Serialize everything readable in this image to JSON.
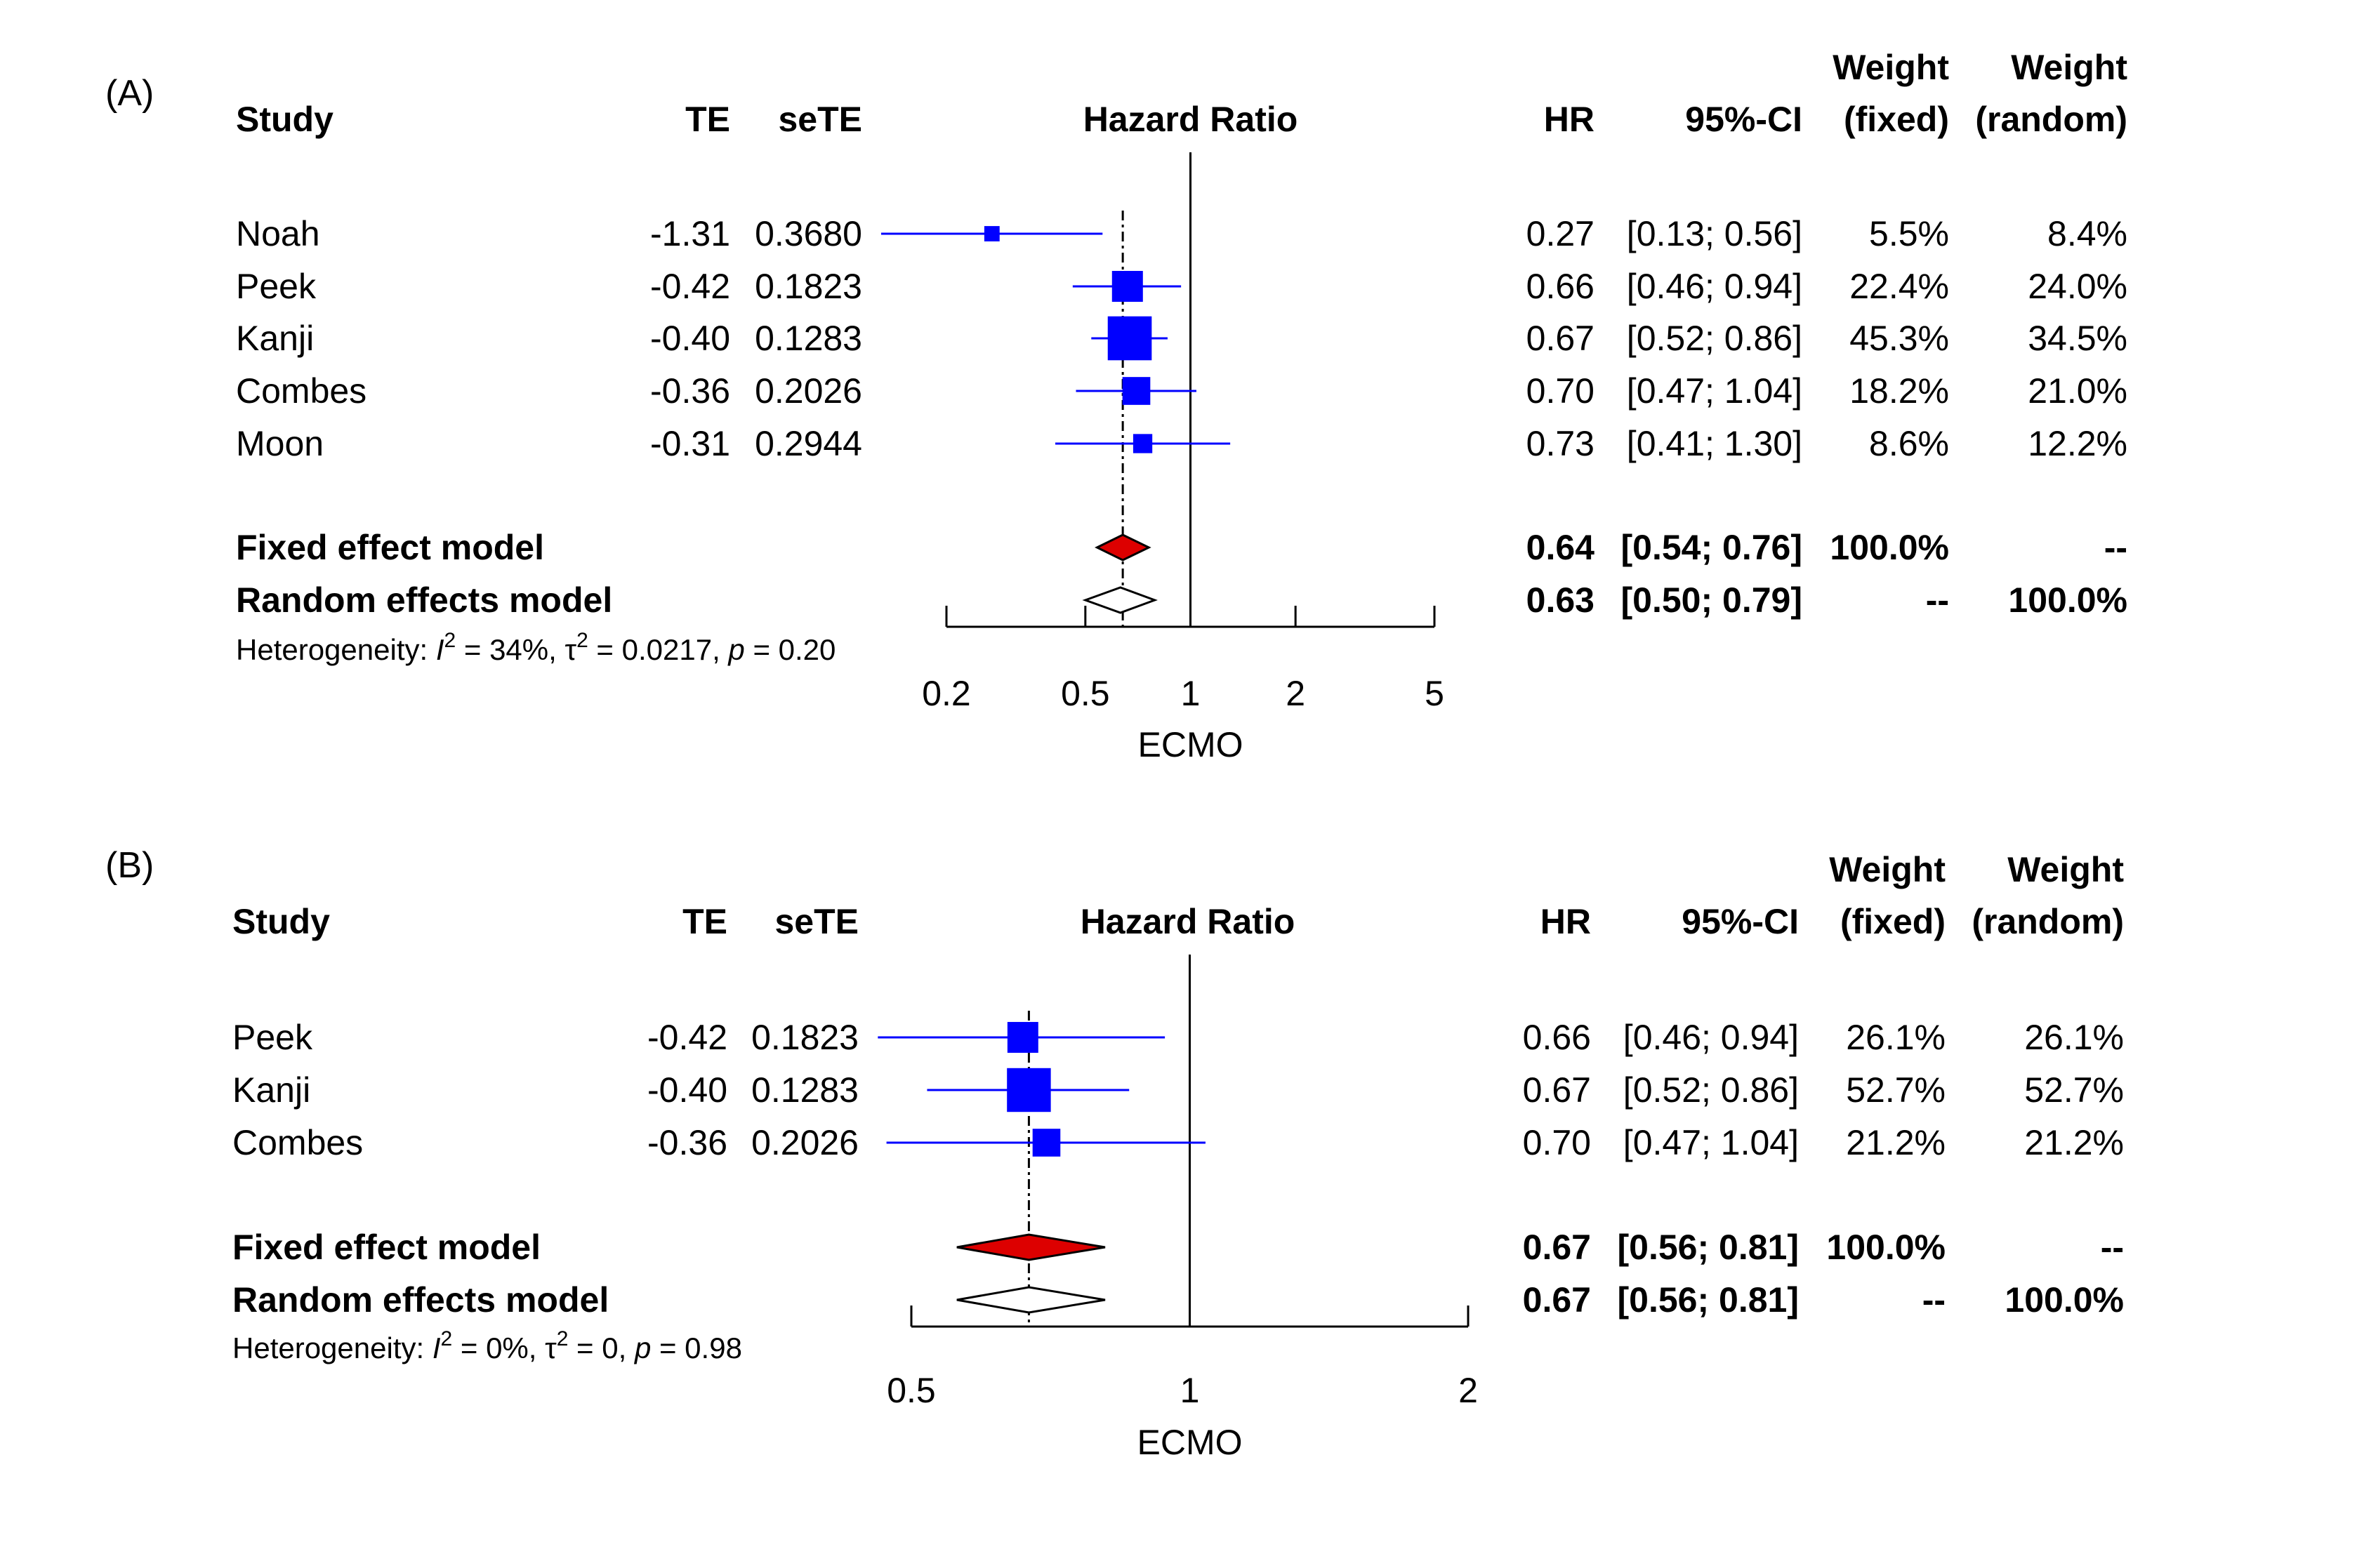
{
  "chart_data": [
    {
      "type": "forest",
      "panel_label": "(A)",
      "headers": {
        "study": "Study",
        "te": "TE",
        "sete": "seTE",
        "plot": "Hazard Ratio",
        "hr": "HR",
        "ci": "95%-CI",
        "weight_fixed_top": "Weight",
        "weight_fixed_bottom": "(fixed)",
        "weight_random_top": "Weight",
        "weight_random_bottom": "(random)"
      },
      "studies": [
        {
          "name": "Noah",
          "te": "-1.31",
          "sete": "0.3680",
          "hr": 0.27,
          "lower": 0.13,
          "upper": 0.56,
          "hr_text": "0.27",
          "ci_text": "[0.13; 0.56]",
          "w_fixed": "5.5%",
          "w_random": "8.4%",
          "weight": 5.5
        },
        {
          "name": "Peek",
          "te": "-0.42",
          "sete": "0.1823",
          "hr": 0.66,
          "lower": 0.46,
          "upper": 0.94,
          "hr_text": "0.66",
          "ci_text": "[0.46; 0.94]",
          "w_fixed": "22.4%",
          "w_random": "24.0%",
          "weight": 22.4
        },
        {
          "name": "Kanji",
          "te": "-0.40",
          "sete": "0.1283",
          "hr": 0.67,
          "lower": 0.52,
          "upper": 0.86,
          "hr_text": "0.67",
          "ci_text": "[0.52; 0.86]",
          "w_fixed": "45.3%",
          "w_random": "34.5%",
          "weight": 45.3
        },
        {
          "name": "Combes",
          "te": "-0.36",
          "sete": "0.2026",
          "hr": 0.7,
          "lower": 0.47,
          "upper": 1.04,
          "hr_text": "0.70",
          "ci_text": "[0.47; 1.04]",
          "w_fixed": "18.2%",
          "w_random": "21.0%",
          "weight": 18.2
        },
        {
          "name": "Moon",
          "te": "-0.31",
          "sete": "0.2944",
          "hr": 0.73,
          "lower": 0.41,
          "upper": 1.3,
          "hr_text": "0.73",
          "ci_text": "[0.41; 1.30]",
          "w_fixed": "8.6%",
          "w_random": "12.2%",
          "weight": 8.6
        }
      ],
      "fixed": {
        "name": "Fixed effect model",
        "hr": 0.64,
        "lower": 0.54,
        "upper": 0.76,
        "hr_text": "0.64",
        "ci_text": "[0.54; 0.76]",
        "w_fixed": "100.0%",
        "w_random": "--"
      },
      "random": {
        "name": "Random effects model",
        "hr": 0.63,
        "lower": 0.5,
        "upper": 0.79,
        "hr_text": "0.63",
        "ci_text": "[0.50; 0.79]",
        "w_fixed": "--",
        "w_random": "100.0%"
      },
      "heterogeneity": {
        "prefix": "Heterogeneity: ",
        "i2": "I",
        "i2_value": " = 34%, ",
        "tau2": "τ",
        "tau2_value": " = 0.0217, ",
        "p": "p",
        "p_value": " = 0.20"
      },
      "x_ticks": [
        0.2,
        0.5,
        1,
        2,
        5
      ],
      "x_tick_labels": [
        "0.2",
        "0.5",
        "1",
        "2",
        "5"
      ],
      "x_scale": "log",
      "xlim": [
        0.2,
        5
      ],
      "xlabel": "ECMO",
      "colors": {
        "square": "#0000ff",
        "ci_line": "#0000ff",
        "fixed_diamond": "#dd0000",
        "random_diamond": "#ffffff"
      }
    },
    {
      "type": "forest",
      "panel_label": "(B)",
      "headers": {
        "study": "Study",
        "te": "TE",
        "sete": "seTE",
        "plot": "Hazard Ratio",
        "hr": "HR",
        "ci": "95%-CI",
        "weight_fixed_top": "Weight",
        "weight_fixed_bottom": "(fixed)",
        "weight_random_top": "Weight",
        "weight_random_bottom": "(random)"
      },
      "studies": [
        {
          "name": "Peek",
          "te": "-0.42",
          "sete": "0.1823",
          "hr": 0.66,
          "lower": 0.46,
          "upper": 0.94,
          "hr_text": "0.66",
          "ci_text": "[0.46; 0.94]",
          "w_fixed": "26.1%",
          "w_random": "26.1%",
          "weight": 26.1
        },
        {
          "name": "Kanji",
          "te": "-0.40",
          "sete": "0.1283",
          "hr": 0.67,
          "lower": 0.52,
          "upper": 0.86,
          "hr_text": "0.67",
          "ci_text": "[0.52; 0.86]",
          "w_fixed": "52.7%",
          "w_random": "52.7%",
          "weight": 52.7
        },
        {
          "name": "Combes",
          "te": "-0.36",
          "sete": "0.2026",
          "hr": 0.7,
          "lower": 0.47,
          "upper": 1.04,
          "hr_text": "0.70",
          "ci_text": "[0.47; 1.04]",
          "w_fixed": "21.2%",
          "w_random": "21.2%",
          "weight": 21.2
        }
      ],
      "fixed": {
        "name": "Fixed effect model",
        "hr": 0.67,
        "lower": 0.56,
        "upper": 0.81,
        "hr_text": "0.67",
        "ci_text": "[0.56; 0.81]",
        "w_fixed": "100.0%",
        "w_random": "--"
      },
      "random": {
        "name": "Random effects model",
        "hr": 0.67,
        "lower": 0.56,
        "upper": 0.81,
        "hr_text": "0.67",
        "ci_text": "[0.56; 0.81]",
        "w_fixed": "--",
        "w_random": "100.0%"
      },
      "heterogeneity": {
        "prefix": "Heterogeneity: ",
        "i2": "I",
        "i2_value": " = 0%, ",
        "tau2": "τ",
        "tau2_value": " = 0, ",
        "p": "p",
        "p_value": " = 0.98"
      },
      "x_ticks": [
        0.5,
        1,
        2
      ],
      "x_tick_labels": [
        "0.5",
        "1",
        "2"
      ],
      "x_scale": "log",
      "xlim": [
        0.5,
        2
      ],
      "xlabel": "ECMO",
      "colors": {
        "square": "#0000ff",
        "ci_line": "#0000ff",
        "fixed_diamond": "#dd0000",
        "random_diamond": "#ffffff"
      }
    }
  ]
}
